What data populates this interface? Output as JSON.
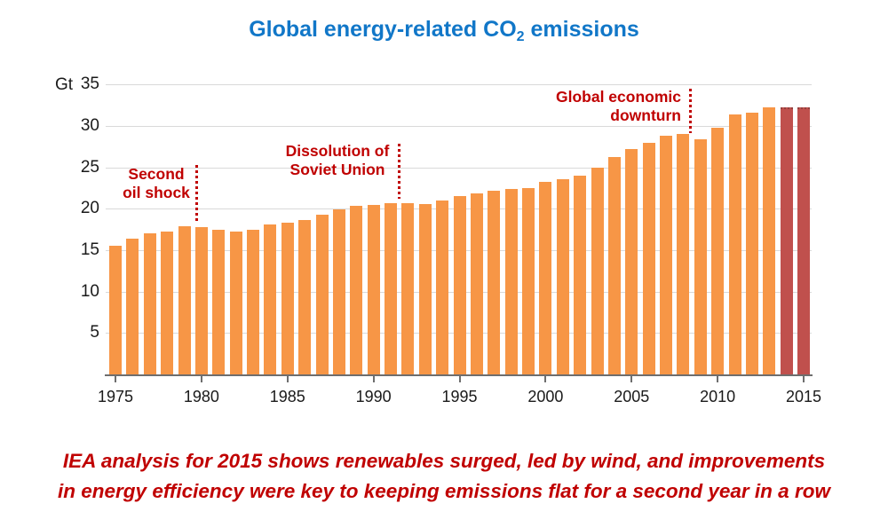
{
  "title": {
    "prefix": "Global energy-related CO",
    "sub": "2",
    "suffix": " emissions"
  },
  "caption": {
    "line1": "IEA analysis for 2015 shows renewables surged, led by wind, and improvements",
    "line2": "in energy efficiency were key to keeping emissions flat for a second year in a row"
  },
  "chart_data": {
    "type": "bar",
    "title": "Global energy-related CO2 emissions",
    "y_unit": "Gt",
    "xlabel": "",
    "ylabel": "Gt",
    "ylim": [
      0,
      35
    ],
    "grid": true,
    "legend": false,
    "y_ticks": [
      5,
      10,
      15,
      20,
      25,
      30,
      35
    ],
    "x_ticks": [
      1975,
      1980,
      1985,
      1990,
      1995,
      2000,
      2005,
      2010,
      2015
    ],
    "years": [
      1975,
      1976,
      1977,
      1978,
      1979,
      1980,
      1981,
      1982,
      1983,
      1984,
      1985,
      1986,
      1987,
      1988,
      1989,
      1990,
      1991,
      1992,
      1993,
      1994,
      1995,
      1996,
      1997,
      1998,
      1999,
      2000,
      2001,
      2002,
      2003,
      2004,
      2005,
      2006,
      2007,
      2008,
      2009,
      2010,
      2011,
      2012,
      2013,
      2014,
      2015
    ],
    "values": [
      15.5,
      16.4,
      17.0,
      17.3,
      17.9,
      17.8,
      17.5,
      17.3,
      17.5,
      18.1,
      18.3,
      18.7,
      19.3,
      19.9,
      20.4,
      20.5,
      20.7,
      20.7,
      20.6,
      21.0,
      21.5,
      21.9,
      22.2,
      22.4,
      22.5,
      23.3,
      23.6,
      24.0,
      25.0,
      26.2,
      27.2,
      28.0,
      28.8,
      29.0,
      28.4,
      29.8,
      31.4,
      31.6,
      32.2,
      32.3,
      32.3
    ],
    "highlight_years": [
      2014,
      2015
    ],
    "bar_color": "#F79646",
    "highlight_color": "#C0504D",
    "annotation_color": "#C00000",
    "annotations": [
      {
        "id": "second-oil-shock",
        "label_lines": [
          "Second",
          "oil shock"
        ],
        "at_year": 1979.7
      },
      {
        "id": "dissolution-soviet-union",
        "label_lines": [
          "Dissolution of",
          "Soviet Union"
        ],
        "at_year": 1991.5
      },
      {
        "id": "global-economic-downturn",
        "label_lines": [
          "Global economic",
          "downturn"
        ],
        "at_year": 2008.4
      }
    ]
  }
}
